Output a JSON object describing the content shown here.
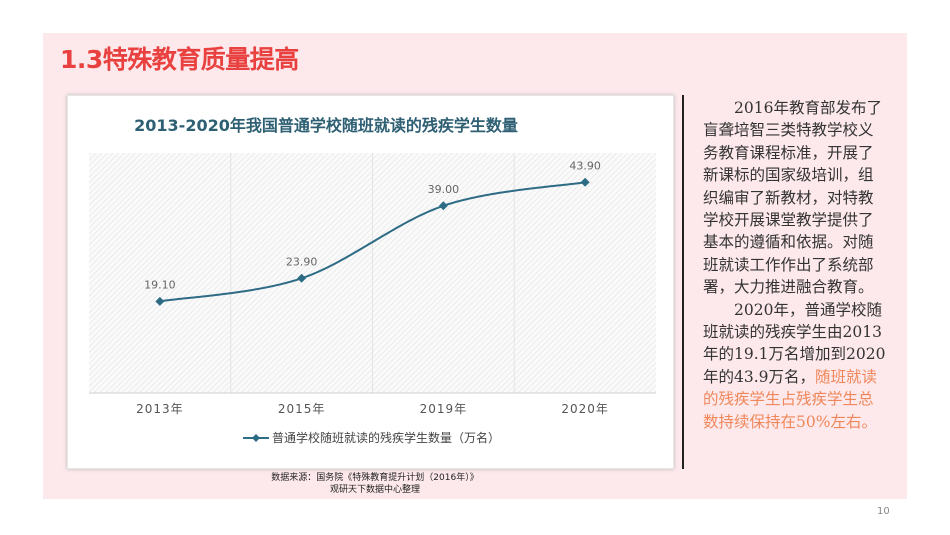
{
  "slide_title": "1.3特殊教育质量提高",
  "chart_data": {
    "type": "line",
    "title": "2013-2020年我国普通学校随班就读的残疾学生数量",
    "categories": [
      "2013年",
      "2015年",
      "2019年",
      "2020年"
    ],
    "series": [
      {
        "name": "普通学校随班就读的残疾学生数量（万名）",
        "values": [
          19.1,
          23.9,
          39.0,
          43.9
        ],
        "labels": [
          "19.10",
          "23.90",
          "39.00",
          "43.90"
        ]
      }
    ],
    "ylim": [
      0,
      50
    ],
    "grid": "vertical",
    "legend": "bottom",
    "smooth": true,
    "line_color": "#2e6b85",
    "title_color": "#2e5f73"
  },
  "source": {
    "line1": "数据来源：国务院《特殊教育提升计划（2016年）》",
    "line2": "观研天下数据中心整理"
  },
  "body_text": {
    "p1": "2016年教育部发布了盲聋培智三类特教学校义务教育课程标准，开展了新课标的国家级培训，组织编审了新教材，对特教学校开展课堂教学提供了基本的遵循和依据。对随班就读工作作出了系统部署，大力推进融合教育。",
    "p2_normal": "2020年，普通学校随班就读的残疾学生由2013年的19.1万名增加到2020年的43.9万名，",
    "p2_highlight": "随班就读的残疾学生占残疾学生总数持续保持在50%左右。"
  },
  "page_number": "10",
  "colors": {
    "title": "#e8413f",
    "highlight": "#f0875a",
    "panel": "#fde9ec"
  }
}
